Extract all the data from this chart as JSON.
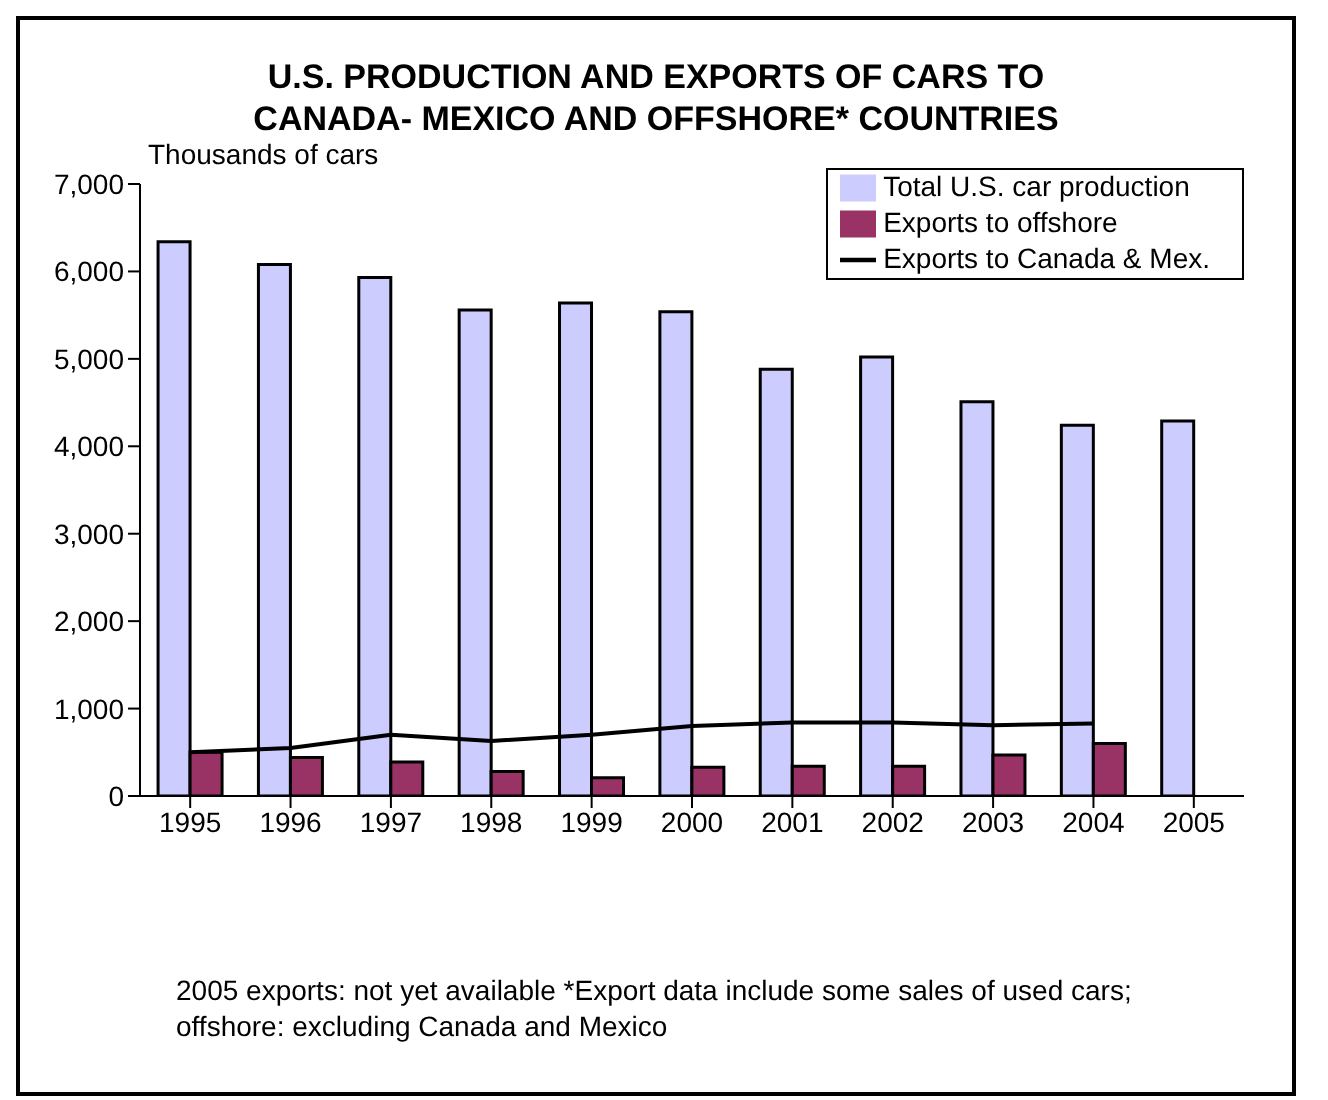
{
  "chart_data": {
    "type": "bar",
    "title": "U.S. PRODUCTION AND EXPORTS OF CARS TO CANADA- MEXICO AND OFFSHORE* COUNTRIES",
    "ylabel": "Thousands of cars",
    "categories": [
      "1995",
      "1996",
      "1997",
      "1998",
      "1999",
      "2000",
      "2001",
      "2002",
      "2003",
      "2004",
      "2005"
    ],
    "series": [
      {
        "name": "Total U.S. car production",
        "color": "#ccccff",
        "values": [
          6340,
          6080,
          5930,
          5560,
          5640,
          5540,
          4880,
          5020,
          4510,
          4240,
          4290
        ]
      },
      {
        "name": "Exports to offshore",
        "color": "#993366",
        "values": [
          500,
          440,
          390,
          280,
          210,
          330,
          340,
          340,
          470,
          600,
          null
        ]
      },
      {
        "name": "Exports to Canada & Mex.",
        "type": "line",
        "color": "#000000",
        "values": [
          500,
          550,
          700,
          630,
          700,
          800,
          840,
          840,
          810,
          830,
          null
        ]
      }
    ],
    "ylim": [
      0,
      7000
    ],
    "yticks": [
      0,
      {
        "value": 1000,
        "label": "1,000"
      },
      {
        "value": 2000,
        "label": "2,000"
      },
      {
        "value": 3000,
        "label": "3,000"
      },
      {
        "value": 4000,
        "label": "4,000"
      },
      {
        "value": 5000,
        "label": "5,000"
      },
      {
        "value": 6000,
        "label": "6,000"
      },
      {
        "value": 7000,
        "label": "7,000"
      }
    ],
    "grid": false,
    "legend": "top right",
    "marker": "none",
    "annotations": [
      "2005 exports: not yet available  *Export data include some sales of used cars; offshore: excluding Canada and Mexico"
    ]
  }
}
